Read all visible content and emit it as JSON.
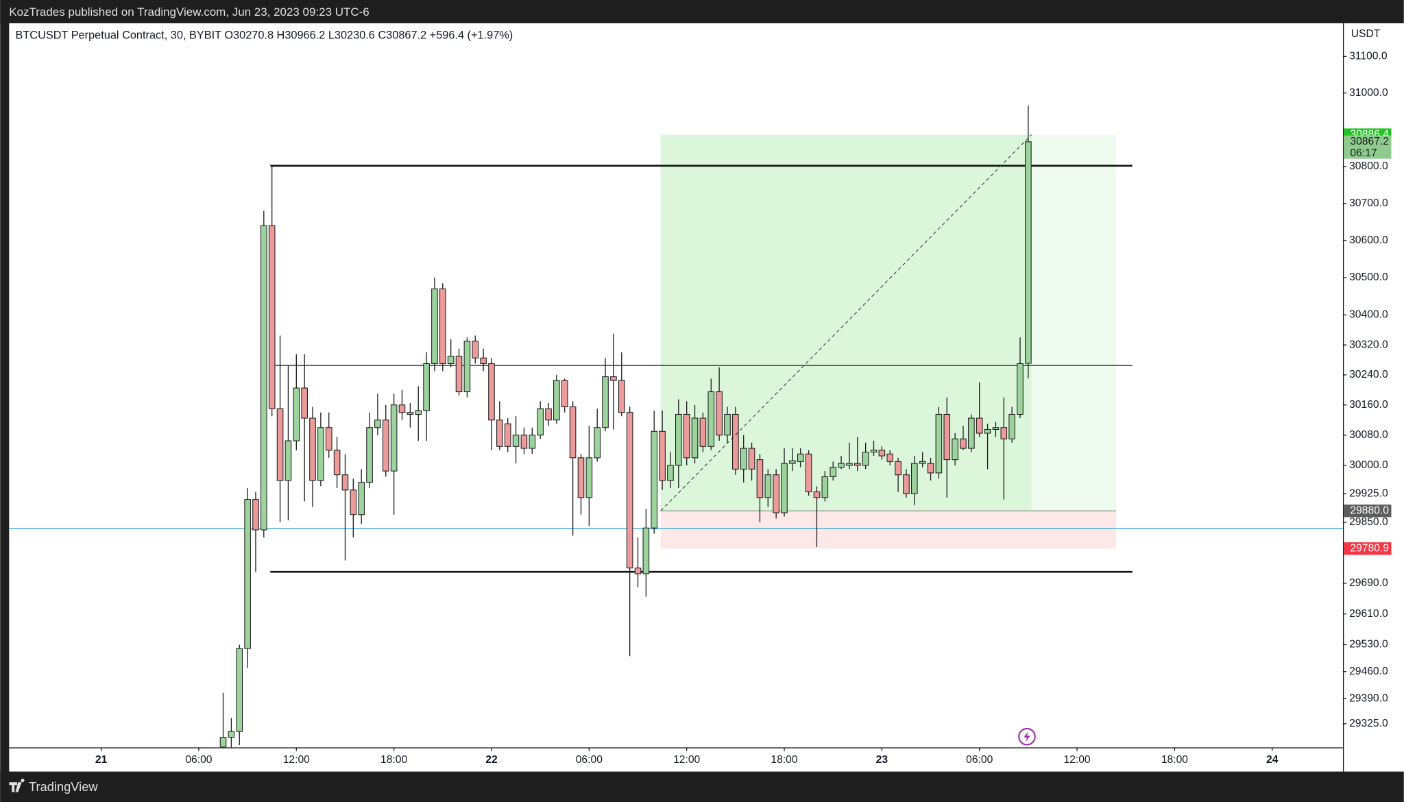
{
  "banner": "KozTrades published on TradingView.com, Jun 23, 2023 09:23 UTC-6",
  "footer": "TradingView",
  "chart_data": {
    "type": "candlestick",
    "legend_text": "BTCUSDT Perpetual Contract, 30, BYBIT  O30270.8  H30966.2  L30230.6  C30867.2  +596.4 (+1.97%)",
    "currency": "USDT",
    "log_scale": true,
    "up_color": "#9dd49d",
    "down_color": "#ec9a9a",
    "wick_color": "#1a1a1a",
    "x": [
      7.5,
      8,
      8.5,
      9,
      9.5,
      10,
      10.5,
      11,
      11.5,
      12,
      12.5,
      13,
      13.5,
      14,
      14.5,
      15,
      15.5,
      16,
      16.5,
      17,
      17.5,
      18,
      18.5,
      19,
      19.5,
      20,
      20.5,
      21,
      21.5,
      22,
      22.5,
      23,
      23.5,
      24,
      24.5,
      25,
      25.5,
      26,
      26.5,
      27,
      27.5,
      28,
      28.5,
      29,
      29.5,
      30,
      30.5,
      31,
      31.5,
      32,
      32.5,
      33,
      33.5,
      34,
      34.5,
      35,
      35.5,
      36,
      36.5,
      37,
      37.5,
      38,
      38.5,
      39,
      39.5,
      40,
      40.5,
      41,
      41.5,
      42,
      42.5,
      43,
      43.5,
      44,
      44.5,
      45,
      45.5,
      46,
      46.5,
      47,
      47.5,
      48,
      48.5,
      49,
      49.5,
      50,
      50.5,
      51,
      51.5,
      52,
      52.5,
      53,
      53.5,
      54,
      54.5,
      55,
      55.5,
      56,
      56.5,
      57
    ],
    "open": [
      29265,
      29290,
      29305,
      29520,
      29910,
      29830,
      30640,
      30150,
      29960,
      30065,
      30205,
      30125,
      29960,
      30100,
      30040,
      29975,
      29935,
      29870,
      29955,
      30100,
      30120,
      29985,
      30160,
      30140,
      30135,
      30145,
      30270,
      30470,
      30270,
      30290,
      30195,
      30330,
      30285,
      30270,
      30120,
      30110,
      30050,
      30080,
      30045,
      30080,
      30150,
      30120,
      30225,
      30155,
      30020,
      29915,
      30020,
      30100,
      30235,
      30225,
      30140,
      29730,
      29715,
      29835,
      30090,
      29960,
      30000,
      30135,
      30020,
      30125,
      30050,
      30195,
      30080,
      30135,
      29990,
      30045,
      30015,
      29915,
      29975,
      29875,
      30005,
      30010,
      30030,
      29930,
      29915,
      29970,
      29995,
      30000,
      30005,
      30000,
      30035,
      30040,
      30030,
      30010,
      29975,
      29925,
      30005,
      30005,
      29980,
      30135,
      30015,
      30070,
      30045,
      30125,
      30085,
      30095,
      30100,
      30070,
      30135,
      30270.8
    ],
    "high": [
      29405,
      29340,
      29530,
      29940,
      29930,
      30680,
      30802,
      30345,
      30265,
      30295,
      30295,
      30155,
      30140,
      30140,
      30075,
      30030,
      29965,
      29990,
      30140,
      30190,
      30160,
      30190,
      30200,
      30165,
      30210,
      30300,
      30500,
      30485,
      30335,
      30310,
      30340,
      30345,
      30310,
      30285,
      30170,
      30125,
      30130,
      30100,
      30100,
      30170,
      30165,
      30240,
      30230,
      30170,
      30030,
      30105,
      30150,
      30285,
      30350,
      30300,
      30155,
      29810,
      29885,
      30145,
      30145,
      30035,
      30175,
      30170,
      30160,
      30140,
      30230,
      30260,
      30155,
      30155,
      30080,
      30060,
      30030,
      29990,
      29990,
      30045,
      30045,
      30045,
      30040,
      29945,
      29985,
      30010,
      30025,
      30060,
      30075,
      30060,
      30065,
      30050,
      30040,
      30020,
      29990,
      30025,
      30035,
      30020,
      30155,
      30180,
      30085,
      30105,
      30135,
      30220,
      30110,
      30115,
      30180,
      30155,
      30340,
      30966.2
    ],
    "low": [
      29250,
      29255,
      29270,
      29470,
      29720,
      29810,
      30130,
      29850,
      29855,
      30040,
      29905,
      29890,
      29945,
      30020,
      29940,
      29750,
      29810,
      29845,
      29940,
      30080,
      29970,
      29870,
      30120,
      30100,
      30065,
      30065,
      30250,
      30250,
      30260,
      30185,
      30180,
      30270,
      30250,
      30040,
      30040,
      30035,
      30005,
      30030,
      30030,
      30070,
      30105,
      30110,
      30140,
      29815,
      29870,
      29840,
      30010,
      30090,
      30095,
      30130,
      29500,
      29680,
      29655,
      29820,
      29935,
      29940,
      29940,
      30000,
      30005,
      30035,
      30040,
      30065,
      30060,
      29975,
      29955,
      29960,
      29850,
      29890,
      29860,
      29865,
      29985,
      29995,
      29920,
      29785,
      29905,
      29960,
      29990,
      29990,
      29985,
      29990,
      30025,
      30015,
      30000,
      29930,
      29915,
      29895,
      29995,
      29960,
      29965,
      29915,
      30000,
      30040,
      30035,
      30075,
      29990,
      30075,
      29910,
      30060,
      30125,
      30230.6
    ],
    "close": [
      29290,
      29305,
      29520,
      29910,
      29830,
      30640,
      30150,
      29960,
      30065,
      30205,
      30125,
      29960,
      30100,
      30040,
      29975,
      29935,
      29870,
      29955,
      30100,
      30120,
      29985,
      30160,
      30140,
      30135,
      30145,
      30270,
      30470,
      30270,
      30290,
      30195,
      30330,
      30285,
      30270,
      30120,
      30050,
      30050,
      30080,
      30045,
      30080,
      30150,
      30120,
      30225,
      30155,
      30020,
      29915,
      30020,
      30100,
      30235,
      30225,
      30140,
      29730,
      29715,
      29835,
      30090,
      29960,
      30000,
      30135,
      30020,
      30125,
      30050,
      30195,
      30080,
      30135,
      29990,
      30045,
      29990,
      29915,
      29975,
      29875,
      30005,
      30012,
      30030,
      29930,
      29915,
      29970,
      29995,
      30005,
      30005,
      30000,
      30035,
      30040,
      30025,
      30010,
      29975,
      29925,
      30005,
      30010,
      29980,
      30135,
      30015,
      30070,
      30045,
      30125,
      30085,
      30095,
      30100,
      30070,
      30135,
      30270,
      30867.2
    ],
    "xlim": [
      -5.66,
      76.35
    ],
    "xticks": [
      {
        "value": 0,
        "label": "21"
      },
      {
        "value": 6,
        "label": "06:00"
      },
      {
        "value": 12,
        "label": "12:00"
      },
      {
        "value": 18,
        "label": "18:00"
      },
      {
        "value": 24,
        "label": "22"
      },
      {
        "value": 30,
        "label": "06:00"
      },
      {
        "value": 36,
        "label": "12:00"
      },
      {
        "value": 42,
        "label": "18:00"
      },
      {
        "value": 48,
        "label": "23"
      },
      {
        "value": 54,
        "label": "06:00"
      },
      {
        "value": 60,
        "label": "12:00"
      },
      {
        "value": 66,
        "label": "18:00"
      },
      {
        "value": 72,
        "label": "24"
      }
    ],
    "ylim": [
      29264,
      31191
    ],
    "yticks": [
      {
        "value": 31100,
        "label": "31100.0"
      },
      {
        "value": 31000,
        "label": "31000.0"
      },
      {
        "value": 30800,
        "label": "30800.0"
      },
      {
        "value": 30700,
        "label": "30700.0"
      },
      {
        "value": 30600,
        "label": "30600.0"
      },
      {
        "value": 30500,
        "label": "30500.0"
      },
      {
        "value": 30400,
        "label": "30400.0"
      },
      {
        "value": 30320,
        "label": "30320.0"
      },
      {
        "value": 30240,
        "label": "30240.0"
      },
      {
        "value": 30160,
        "label": "30160.0"
      },
      {
        "value": 30080,
        "label": "30080.0"
      },
      {
        "value": 30000,
        "label": "30000.0"
      },
      {
        "value": 29925,
        "label": "29925.0"
      },
      {
        "value": 29850,
        "label": "29850.0"
      },
      {
        "value": 29690,
        "label": "29690.0"
      },
      {
        "value": 29610,
        "label": "29610.0"
      },
      {
        "value": 29530,
        "label": "29530.0"
      },
      {
        "value": 29460,
        "label": "29460.0"
      },
      {
        "value": 29390,
        "label": "29390.0"
      },
      {
        "value": 29325,
        "label": "29325.0"
      }
    ],
    "hlines": [
      {
        "y": 30802,
        "x_start": 10.4,
        "x_end": 63.4,
        "color": "#111111",
        "width": 2
      },
      {
        "y": 30265,
        "x_start": 10.4,
        "x_end": 63.4,
        "color": "#555555",
        "width": 1.2
      },
      {
        "y": 29720,
        "x_start": 10.4,
        "x_end": 63.4,
        "color": "#111111",
        "width": 2
      },
      {
        "y": 29833,
        "x_start": -5.66,
        "x_end": 76.35,
        "color": "#2a9fd6",
        "width": 1
      }
    ],
    "position": {
      "x_start": 34.4,
      "x_end": 62.4,
      "x_fill_end": 57.2,
      "entry": 29880.0,
      "target": 30886.4,
      "stop": 29780.9
    },
    "price_labels": [
      {
        "value": 30886.4,
        "label": "30886.4",
        "color": "#22c322",
        "text_color": "#ffffff"
      },
      {
        "value": 30867.2,
        "label": "30867.2",
        "color": "#8fcb8f",
        "text_color": "#1a1a1a"
      },
      {
        "value": 29880.0,
        "label": "29880.0",
        "color": "#5d5d5d",
        "text_color": "#ffffff"
      },
      {
        "value": 29780.9,
        "label": "29780.9",
        "color": "#f23645",
        "text_color": "#ffffff"
      }
    ],
    "countdown": "06:17"
  }
}
